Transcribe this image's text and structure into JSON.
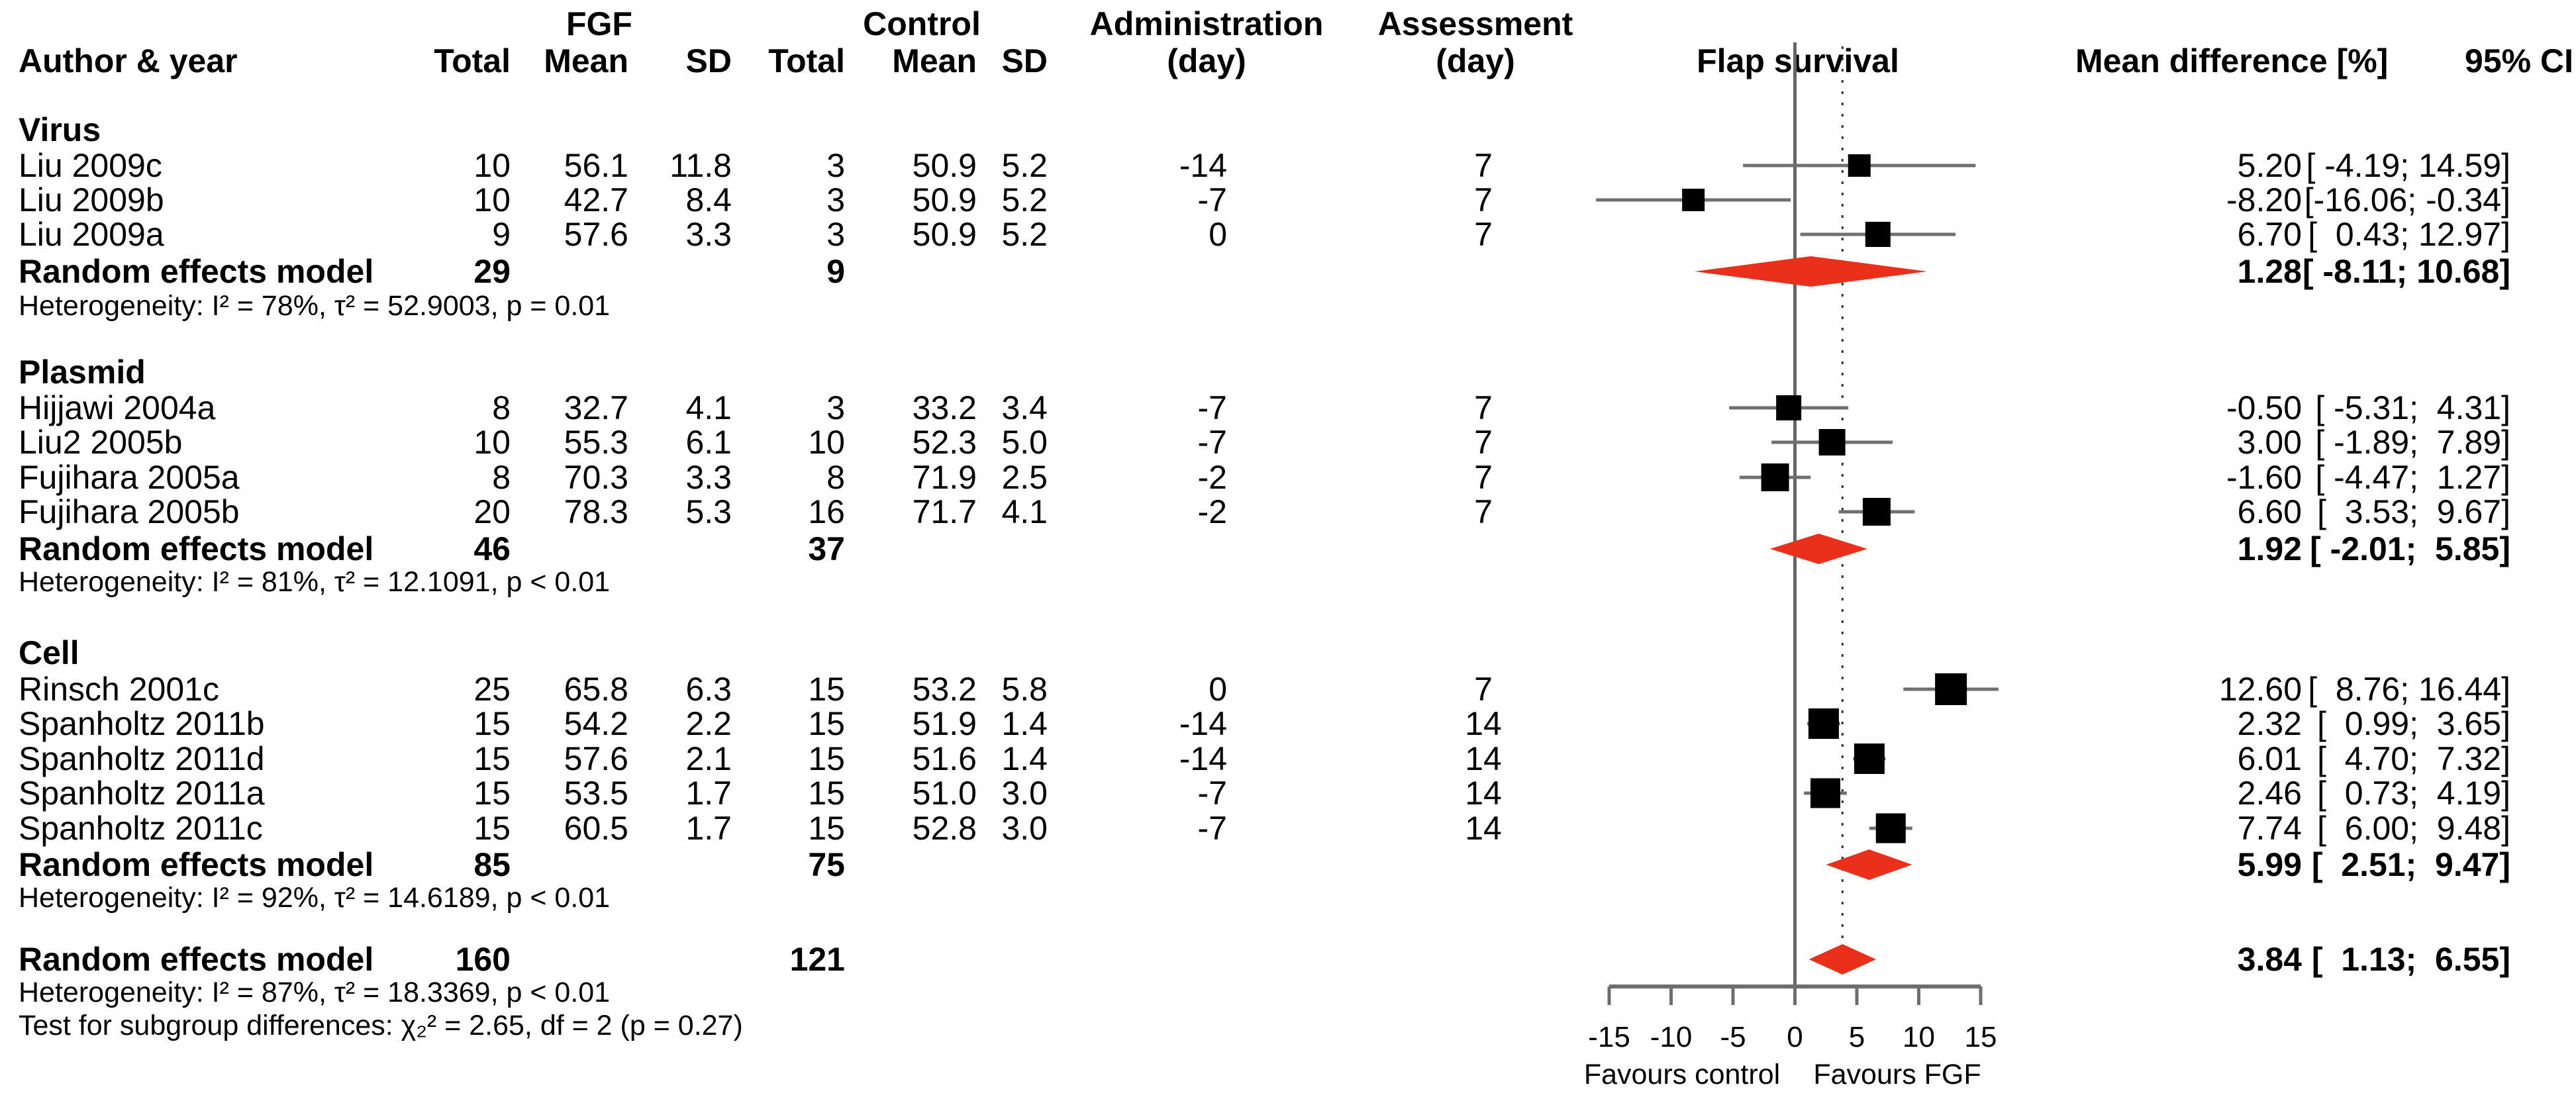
{
  "header": {
    "author_year": "Author & year",
    "fgf_group": "FGF",
    "control_group": "Control",
    "total": "Total",
    "mean": "Mean",
    "sd": "SD",
    "administration": "Administration",
    "assessment": "Assessment",
    "day": "(day)",
    "flap_survival": "Flap survival",
    "mean_difference": "Mean difference [%]",
    "ci": "95% CI"
  },
  "groups": [
    {
      "label": "Virus",
      "studies": [
        {
          "author": "Liu 2009c",
          "fgf_total": "10",
          "fgf_mean": "56.1",
          "fgf_sd": "11.8",
          "ctrl_total": "3",
          "ctrl_mean": "50.9",
          "ctrl_sd": "5.2",
          "admin": "-14",
          "assess": "7",
          "md": "5.20",
          "ci": "[ -4.19; 14.59]"
        },
        {
          "author": "Liu 2009b",
          "fgf_total": "10",
          "fgf_mean": "42.7",
          "fgf_sd": "8.4",
          "ctrl_total": "3",
          "ctrl_mean": "50.9",
          "ctrl_sd": "5.2",
          "admin": "-7",
          "assess": "7",
          "md": "-8.20",
          "ci": "[-16.06; -0.34]"
        },
        {
          "author": "Liu 2009a",
          "fgf_total": "9",
          "fgf_mean": "57.6",
          "fgf_sd": "3.3",
          "ctrl_total": "3",
          "ctrl_mean": "50.9",
          "ctrl_sd": "5.2",
          "admin": "0",
          "assess": "7",
          "md": "6.70",
          "ci": "[  0.43; 12.97]"
        }
      ],
      "pooled": {
        "label": "Random effects model",
        "fgf_total": "29",
        "ctrl_total": "9",
        "md": "1.28",
        "ci": "[ -8.11; 10.68]"
      },
      "heterogeneity": "Heterogeneity: I² = 78%, τ² = 52.9003, p = 0.01"
    },
    {
      "label": "Plasmid",
      "studies": [
        {
          "author": "Hijjawi 2004a",
          "fgf_total": "8",
          "fgf_mean": "32.7",
          "fgf_sd": "4.1",
          "ctrl_total": "3",
          "ctrl_mean": "33.2",
          "ctrl_sd": "3.4",
          "admin": "-7",
          "assess": "7",
          "md": "-0.50",
          "ci": "[ -5.31;  4.31]"
        },
        {
          "author": "Liu2 2005b",
          "fgf_total": "10",
          "fgf_mean": "55.3",
          "fgf_sd": "6.1",
          "ctrl_total": "10",
          "ctrl_mean": "52.3",
          "ctrl_sd": "5.0",
          "admin": "-7",
          "assess": "7",
          "md": "3.00",
          "ci": "[ -1.89;  7.89]"
        },
        {
          "author": "Fujihara 2005a",
          "fgf_total": "8",
          "fgf_mean": "70.3",
          "fgf_sd": "3.3",
          "ctrl_total": "8",
          "ctrl_mean": "71.9",
          "ctrl_sd": "2.5",
          "admin": "-2",
          "assess": "7",
          "md": "-1.60",
          "ci": "[ -4.47;  1.27]"
        },
        {
          "author": "Fujihara 2005b",
          "fgf_total": "20",
          "fgf_mean": "78.3",
          "fgf_sd": "5.3",
          "ctrl_total": "16",
          "ctrl_mean": "71.7",
          "ctrl_sd": "4.1",
          "admin": "-2",
          "assess": "7",
          "md": "6.60",
          "ci": "[  3.53;  9.67]"
        }
      ],
      "pooled": {
        "label": "Random effects model",
        "fgf_total": "46",
        "ctrl_total": "37",
        "md": "1.92",
        "ci": "[ -2.01;  5.85]"
      },
      "heterogeneity": "Heterogeneity: I² = 81%, τ² = 12.1091, p < 0.01"
    },
    {
      "label": "Cell",
      "studies": [
        {
          "author": "Rinsch 2001c",
          "fgf_total": "25",
          "fgf_mean": "65.8",
          "fgf_sd": "6.3",
          "ctrl_total": "15",
          "ctrl_mean": "53.2",
          "ctrl_sd": "5.8",
          "admin": "0",
          "assess": "7",
          "md": "12.60",
          "ci": "[  8.76; 16.44]"
        },
        {
          "author": "Spanholtz 2011b",
          "fgf_total": "15",
          "fgf_mean": "54.2",
          "fgf_sd": "2.2",
          "ctrl_total": "15",
          "ctrl_mean": "51.9",
          "ctrl_sd": "1.4",
          "admin": "-14",
          "assess": "14",
          "md": "2.32",
          "ci": "[  0.99;  3.65]"
        },
        {
          "author": "Spanholtz 2011d",
          "fgf_total": "15",
          "fgf_mean": "57.6",
          "fgf_sd": "2.1",
          "ctrl_total": "15",
          "ctrl_mean": "51.6",
          "ctrl_sd": "1.4",
          "admin": "-14",
          "assess": "14",
          "md": "6.01",
          "ci": "[  4.70;  7.32]"
        },
        {
          "author": "Spanholtz 2011a",
          "fgf_total": "15",
          "fgf_mean": "53.5",
          "fgf_sd": "1.7",
          "ctrl_total": "15",
          "ctrl_mean": "51.0",
          "ctrl_sd": "3.0",
          "admin": "-7",
          "assess": "14",
          "md": "2.46",
          "ci": "[  0.73;  4.19]"
        },
        {
          "author": "Spanholtz 2011c",
          "fgf_total": "15",
          "fgf_mean": "60.5",
          "fgf_sd": "1.7",
          "ctrl_total": "15",
          "ctrl_mean": "52.8",
          "ctrl_sd": "3.0",
          "admin": "-7",
          "assess": "14",
          "md": "7.74",
          "ci": "[  6.00;  9.48]"
        }
      ],
      "pooled": {
        "label": "Random effects model",
        "fgf_total": "85",
        "ctrl_total": "75",
        "md": "5.99",
        "ci": "[  2.51;  9.47]"
      },
      "heterogeneity": "Heterogeneity: I² = 92%, τ² = 14.6189, p < 0.01"
    }
  ],
  "overall": {
    "label": "Random effects model",
    "fgf_total": "160",
    "ctrl_total": "121",
    "md": "3.84",
    "ci": "[  1.13;  6.55]",
    "heterogeneity": "Heterogeneity: I² = 87%, τ² = 18.3369, p < 0.01",
    "subgroup_test": "Test for subgroup differences: χ₂² = 2.65, df = 2 (p = 0.27)"
  },
  "axis": {
    "ticks": [
      "-15",
      "-10",
      "-5",
      "0",
      "5",
      "10",
      "15"
    ],
    "favours_left": "Favours control",
    "favours_right": "Favours FGF"
  },
  "colors": {
    "diamond": "#ea2f1a",
    "square": "#000000",
    "ci_line": "#707070",
    "axis": "#6e6e6e",
    "dashed": "#333333"
  },
  "chart_data": {
    "type": "scatter",
    "variant": "forest_plot_mean_difference",
    "title": "Flap survival",
    "xlabel": "Mean difference [%]",
    "xlim": [
      -17,
      17
    ],
    "x_ticks": [
      -15,
      -10,
      -5,
      0,
      5,
      10,
      15
    ],
    "reference_line": 0,
    "legend_position": "none",
    "grid": false,
    "groups": [
      {
        "name": "Virus",
        "studies": [
          {
            "label": "Liu 2009c",
            "md": 5.2,
            "lo": -4.19,
            "hi": 14.59,
            "size": 34
          },
          {
            "label": "Liu 2009b",
            "md": -8.2,
            "lo": -16.06,
            "hi": -0.34,
            "size": 34
          },
          {
            "label": "Liu 2009a",
            "md": 6.7,
            "lo": 0.43,
            "hi": 12.97,
            "size": 38
          }
        ],
        "pooled": {
          "md": 1.28,
          "lo": -8.11,
          "hi": 10.68
        }
      },
      {
        "name": "Plasmid",
        "studies": [
          {
            "label": "Hijjawi 2004a",
            "md": -0.5,
            "lo": -5.31,
            "hi": 4.31,
            "size": 38
          },
          {
            "label": "Liu2 2005b",
            "md": 3.0,
            "lo": -1.89,
            "hi": 7.89,
            "size": 40
          },
          {
            "label": "Fujihara 2005a",
            "md": -1.6,
            "lo": -4.47,
            "hi": 1.27,
            "size": 42
          },
          {
            "label": "Fujihara 2005b",
            "md": 6.6,
            "lo": 3.53,
            "hi": 9.67,
            "size": 42
          }
        ],
        "pooled": {
          "md": 1.92,
          "lo": -2.01,
          "hi": 5.85
        }
      },
      {
        "name": "Cell",
        "studies": [
          {
            "label": "Rinsch 2001c",
            "md": 12.6,
            "lo": 8.76,
            "hi": 16.44,
            "size": 48
          },
          {
            "label": "Spanholtz 2011b",
            "md": 2.32,
            "lo": 0.99,
            "hi": 3.65,
            "size": 46
          },
          {
            "label": "Spanholtz 2011d",
            "md": 6.01,
            "lo": 4.7,
            "hi": 7.32,
            "size": 46
          },
          {
            "label": "Spanholtz 2011a",
            "md": 2.46,
            "lo": 0.73,
            "hi": 4.19,
            "size": 45
          },
          {
            "label": "Spanholtz 2011c",
            "md": 7.74,
            "lo": 6.0,
            "hi": 9.48,
            "size": 45
          }
        ],
        "pooled": {
          "md": 5.99,
          "lo": 2.51,
          "hi": 9.47
        }
      }
    ],
    "overall": {
      "md": 3.84,
      "lo": 1.13,
      "hi": 6.55
    },
    "favours_left": "Favours control",
    "favours_right": "Favours FGF"
  }
}
